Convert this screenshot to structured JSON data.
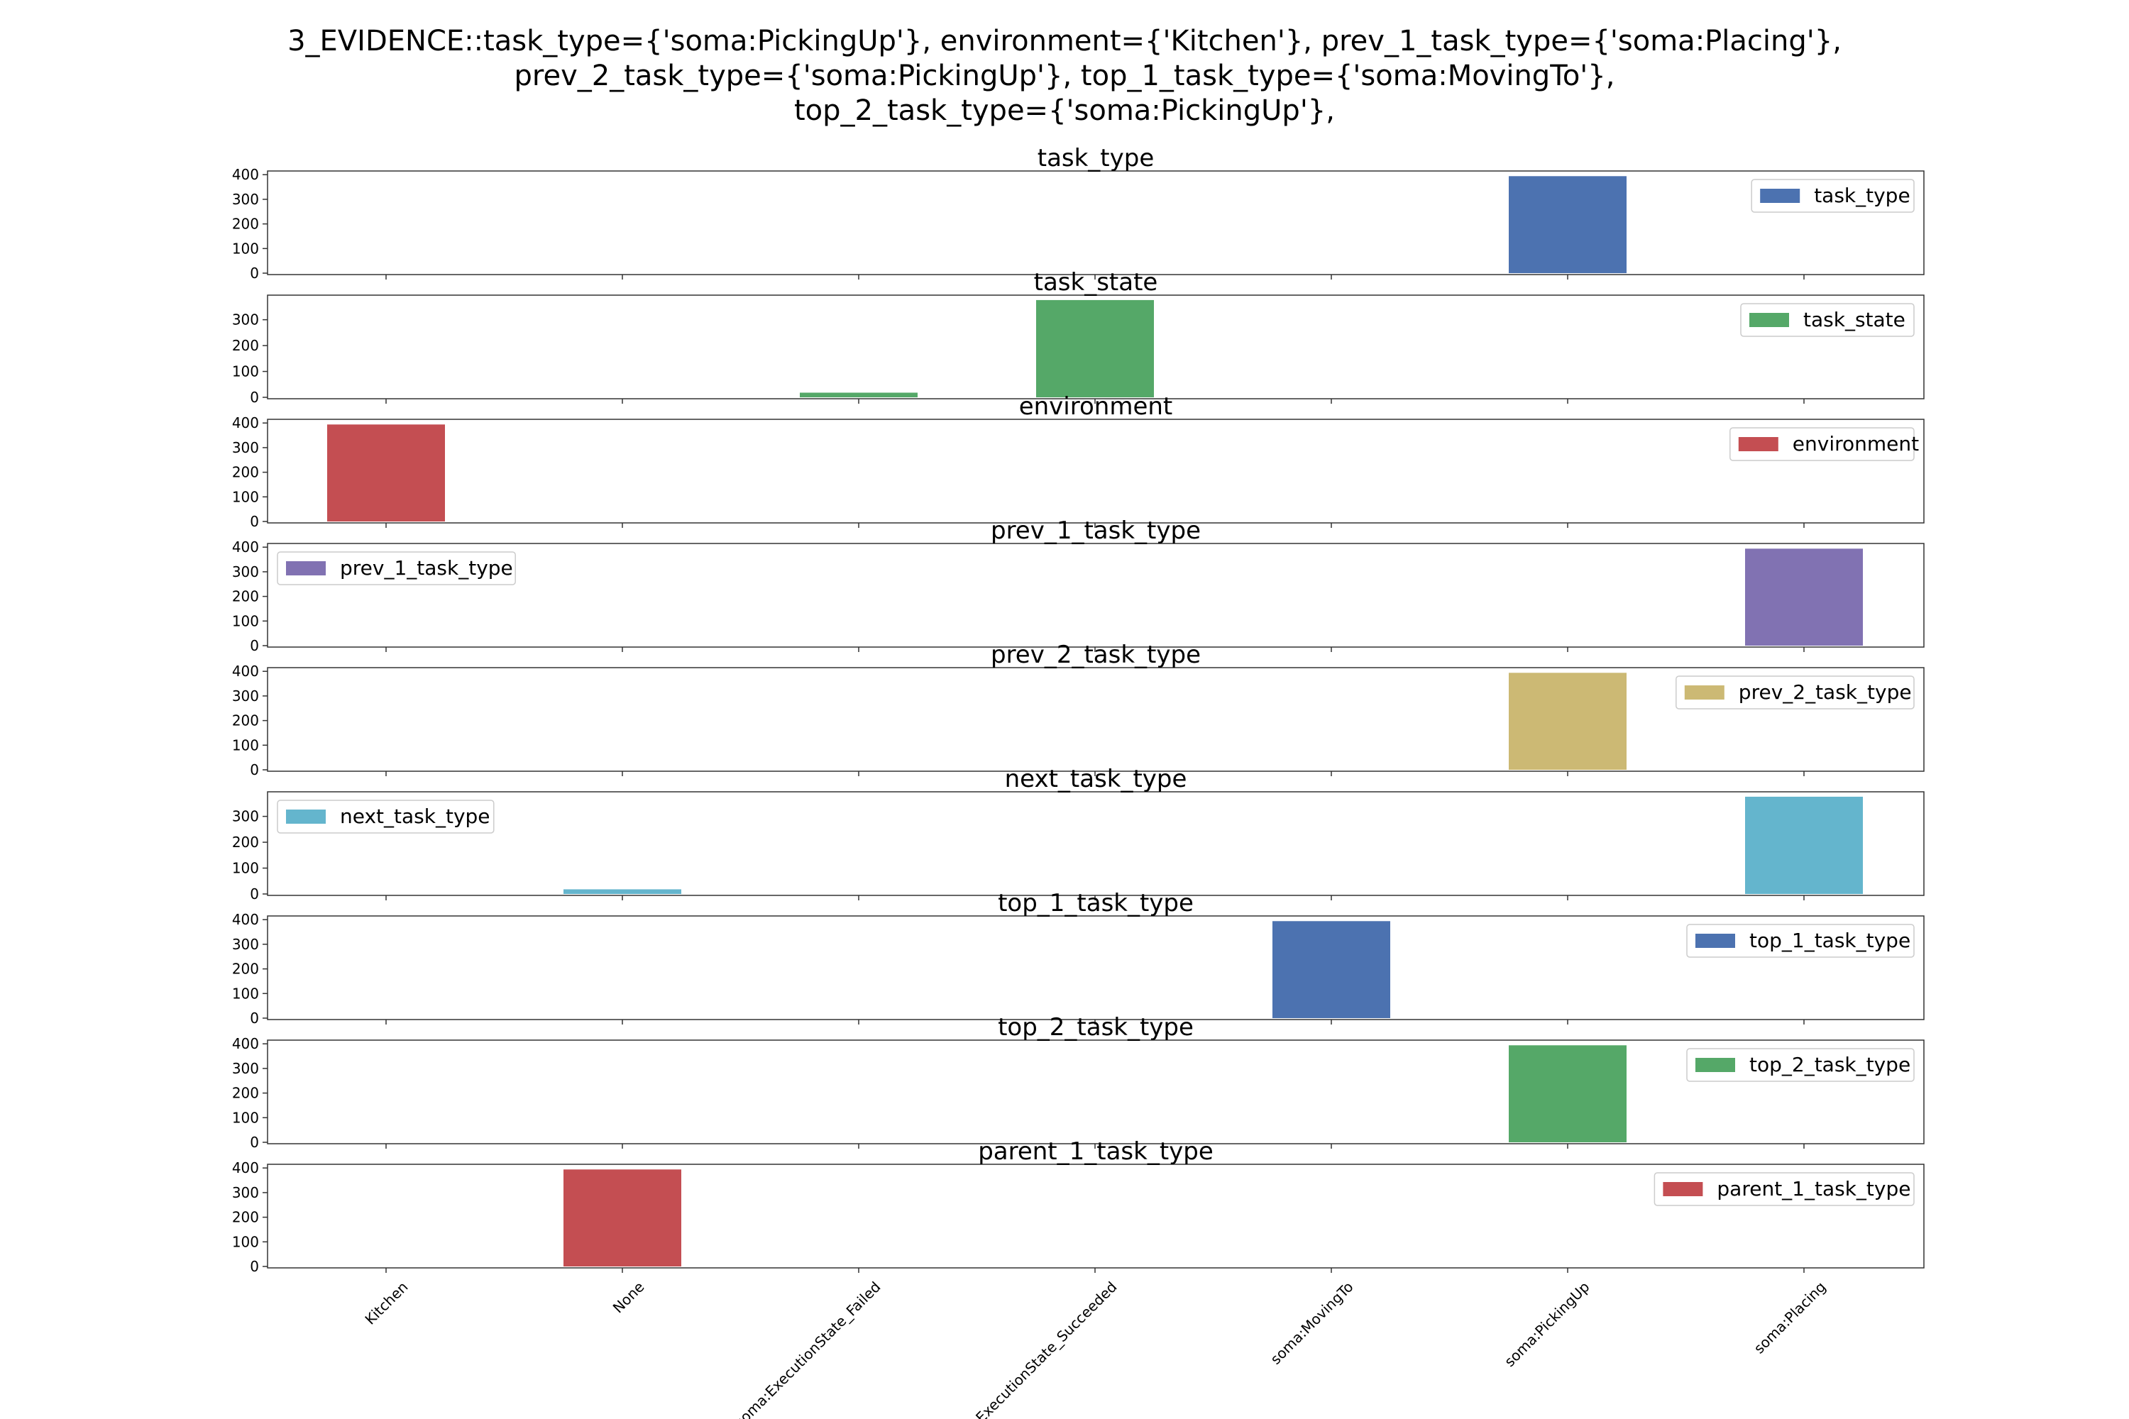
{
  "chart_data": {
    "type": "bar",
    "title_lines": [
      "3_EVIDENCE::task_type={'soma:PickingUp'}, environment={'Kitchen'}, prev_1_task_type={'soma:Placing'},",
      "prev_2_task_type={'soma:PickingUp'}, top_1_task_type={'soma:MovingTo'},",
      "top_2_task_type={'soma:PickingUp'},"
    ],
    "categories": [
      "Kitchen",
      "None",
      "soma:ExecutionState_Failed",
      "soma:ExecutionState_Succeeded",
      "soma:MovingTo",
      "soma:PickingUp",
      "soma:Placing"
    ],
    "panels": [
      {
        "title": "task_type",
        "legend": "task_type",
        "legend_loc": "upper right",
        "color": "#4c72b0",
        "yticks": [
          0,
          100,
          200,
          300,
          400
        ],
        "ylim": [
          0,
          415
        ],
        "values": [
          0,
          0,
          0,
          0,
          0,
          394,
          0
        ]
      },
      {
        "title": "task_state",
        "legend": "task_state",
        "legend_loc": "upper right",
        "color": "#55a868",
        "yticks": [
          0,
          100,
          200,
          300
        ],
        "ylim": [
          0,
          395
        ],
        "values": [
          0,
          0,
          18,
          376,
          0,
          0,
          0
        ]
      },
      {
        "title": "environment",
        "legend": "environment",
        "legend_loc": "upper right",
        "color": "#c44e52",
        "yticks": [
          0,
          100,
          200,
          300,
          400
        ],
        "ylim": [
          0,
          415
        ],
        "values": [
          394,
          0,
          0,
          0,
          0,
          0,
          0
        ]
      },
      {
        "title": "prev_1_task_type",
        "legend": "prev_1_task_type",
        "legend_loc": "upper left",
        "color": "#8172b2",
        "yticks": [
          0,
          100,
          200,
          300,
          400
        ],
        "ylim": [
          0,
          415
        ],
        "values": [
          0,
          0,
          0,
          0,
          0,
          0,
          394
        ]
      },
      {
        "title": "prev_2_task_type",
        "legend": "prev_2_task_type",
        "legend_loc": "upper right",
        "color": "#ccb974",
        "yticks": [
          0,
          100,
          200,
          300,
          400
        ],
        "ylim": [
          0,
          415
        ],
        "values": [
          0,
          0,
          0,
          0,
          0,
          394,
          0
        ]
      },
      {
        "title": "next_task_type",
        "legend": "next_task_type",
        "legend_loc": "upper left",
        "color": "#64b5cd",
        "yticks": [
          0,
          100,
          200,
          300
        ],
        "ylim": [
          0,
          395
        ],
        "values": [
          0,
          18,
          0,
          0,
          0,
          0,
          376
        ]
      },
      {
        "title": "top_1_task_type",
        "legend": "top_1_task_type",
        "legend_loc": "upper right",
        "color": "#4c72b0",
        "yticks": [
          0,
          100,
          200,
          300,
          400
        ],
        "ylim": [
          0,
          415
        ],
        "values": [
          0,
          0,
          0,
          0,
          394,
          0,
          0
        ]
      },
      {
        "title": "top_2_task_type",
        "legend": "top_2_task_type",
        "legend_loc": "upper right",
        "color": "#55a868",
        "yticks": [
          0,
          100,
          200,
          300,
          400
        ],
        "ylim": [
          0,
          415
        ],
        "values": [
          0,
          0,
          0,
          0,
          0,
          394,
          0
        ]
      },
      {
        "title": "parent_1_task_type",
        "legend": "parent_1_task_type",
        "legend_loc": "upper right",
        "color": "#c44e52",
        "yticks": [
          0,
          100,
          200,
          300,
          400
        ],
        "ylim": [
          0,
          415
        ],
        "values": [
          0,
          394,
          0,
          0,
          0,
          0,
          0
        ]
      }
    ]
  }
}
